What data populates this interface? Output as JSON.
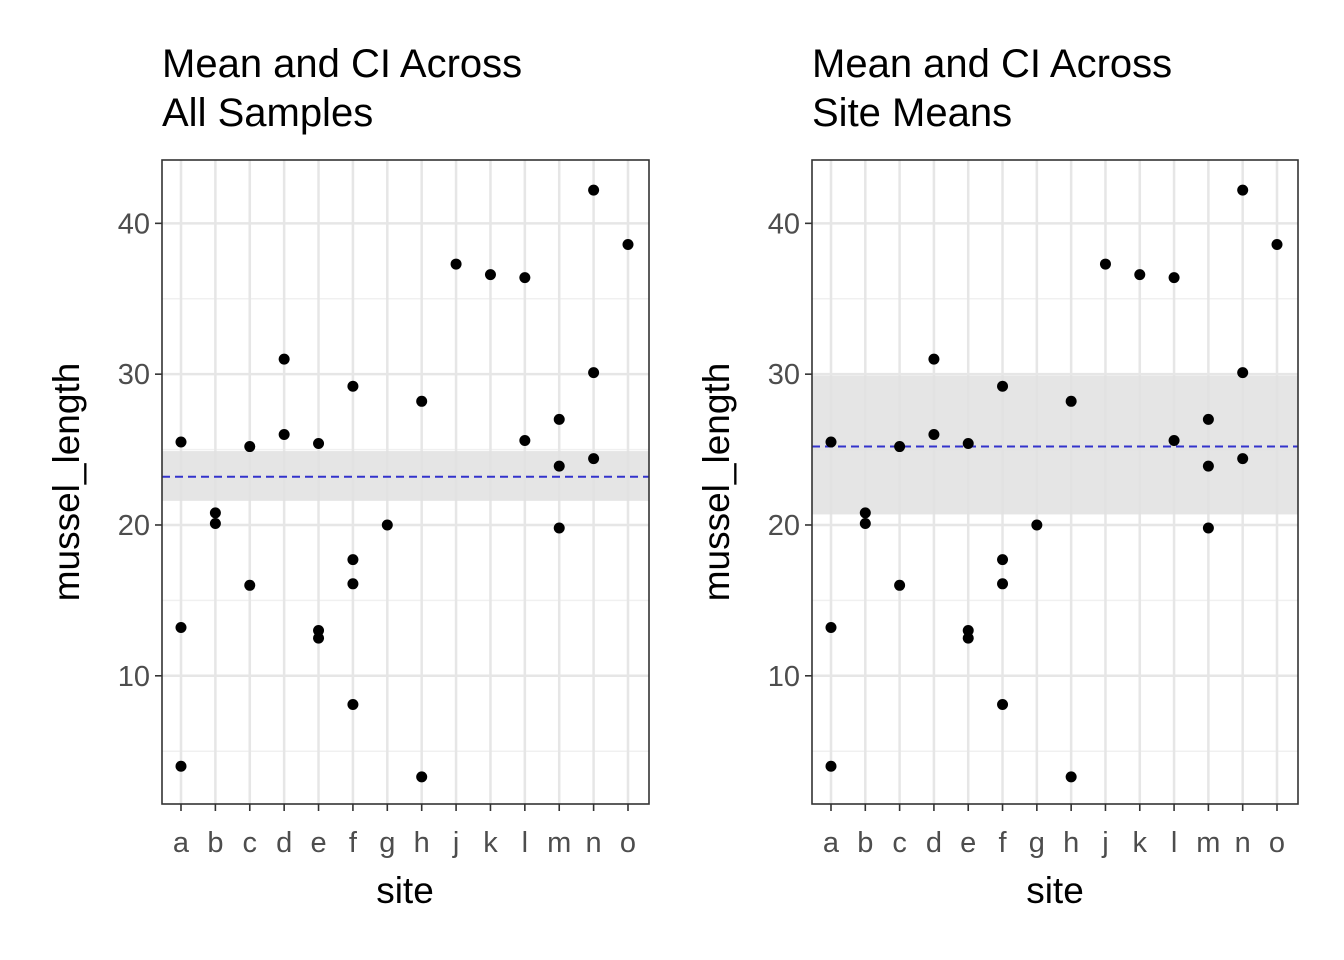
{
  "chart_data": [
    {
      "type": "scatter",
      "title_lines": [
        "Mean and CI Across",
        "All Samples"
      ],
      "xlabel": "site",
      "ylabel": "mussel_length",
      "categories": [
        "a",
        "b",
        "c",
        "d",
        "e",
        "f",
        "g",
        "h",
        "j",
        "k",
        "l",
        "m",
        "n",
        "o"
      ],
      "ylim": [
        1.5,
        44.2
      ],
      "yticks": [
        "10",
        "20",
        "30",
        "40"
      ],
      "grid": true,
      "points": [
        {
          "x": "a",
          "y": 25.5
        },
        {
          "x": "a",
          "y": 13.2
        },
        {
          "x": "a",
          "y": 4.0
        },
        {
          "x": "b",
          "y": 20.8
        },
        {
          "x": "b",
          "y": 20.1
        },
        {
          "x": "c",
          "y": 25.2
        },
        {
          "x": "c",
          "y": 16.0
        },
        {
          "x": "d",
          "y": 31.0
        },
        {
          "x": "d",
          "y": 26.0
        },
        {
          "x": "e",
          "y": 25.4
        },
        {
          "x": "e",
          "y": 13.0
        },
        {
          "x": "e",
          "y": 12.5
        },
        {
          "x": "f",
          "y": 29.2
        },
        {
          "x": "f",
          "y": 17.7
        },
        {
          "x": "f",
          "y": 16.1
        },
        {
          "x": "f",
          "y": 8.1
        },
        {
          "x": "g",
          "y": 20.0
        },
        {
          "x": "h",
          "y": 28.2
        },
        {
          "x": "h",
          "y": 3.3
        },
        {
          "x": "j",
          "y": 37.3
        },
        {
          "x": "k",
          "y": 36.6
        },
        {
          "x": "l",
          "y": 36.4
        },
        {
          "x": "l",
          "y": 25.6
        },
        {
          "x": "m",
          "y": 27.0
        },
        {
          "x": "m",
          "y": 23.9
        },
        {
          "x": "m",
          "y": 19.8
        },
        {
          "x": "n",
          "y": 42.2
        },
        {
          "x": "n",
          "y": 30.1
        },
        {
          "x": "n",
          "y": 24.4
        },
        {
          "x": "o",
          "y": 38.6
        }
      ],
      "mean": 23.2,
      "ci": [
        21.6,
        24.9
      ],
      "mean_line_color": "#3333cc",
      "ci_band_color": "#e0e0e0",
      "point_color": "#000000"
    },
    {
      "type": "scatter",
      "title_lines": [
        "Mean and CI Across",
        "Site Means"
      ],
      "xlabel": "site",
      "ylabel": "mussel_length",
      "categories": [
        "a",
        "b",
        "c",
        "d",
        "e",
        "f",
        "g",
        "h",
        "j",
        "k",
        "l",
        "m",
        "n",
        "o"
      ],
      "ylim": [
        1.5,
        44.2
      ],
      "yticks": [
        "10",
        "20",
        "30",
        "40"
      ],
      "grid": true,
      "points": [
        {
          "x": "a",
          "y": 25.5
        },
        {
          "x": "a",
          "y": 13.2
        },
        {
          "x": "a",
          "y": 4.0
        },
        {
          "x": "b",
          "y": 20.8
        },
        {
          "x": "b",
          "y": 20.1
        },
        {
          "x": "c",
          "y": 25.2
        },
        {
          "x": "c",
          "y": 16.0
        },
        {
          "x": "d",
          "y": 31.0
        },
        {
          "x": "d",
          "y": 26.0
        },
        {
          "x": "e",
          "y": 25.4
        },
        {
          "x": "e",
          "y": 13.0
        },
        {
          "x": "e",
          "y": 12.5
        },
        {
          "x": "f",
          "y": 29.2
        },
        {
          "x": "f",
          "y": 17.7
        },
        {
          "x": "f",
          "y": 16.1
        },
        {
          "x": "f",
          "y": 8.1
        },
        {
          "x": "g",
          "y": 20.0
        },
        {
          "x": "h",
          "y": 28.2
        },
        {
          "x": "h",
          "y": 3.3
        },
        {
          "x": "j",
          "y": 37.3
        },
        {
          "x": "k",
          "y": 36.6
        },
        {
          "x": "l",
          "y": 36.4
        },
        {
          "x": "l",
          "y": 25.6
        },
        {
          "x": "m",
          "y": 27.0
        },
        {
          "x": "m",
          "y": 23.9
        },
        {
          "x": "m",
          "y": 19.8
        },
        {
          "x": "n",
          "y": 42.2
        },
        {
          "x": "n",
          "y": 30.1
        },
        {
          "x": "n",
          "y": 24.4
        },
        {
          "x": "o",
          "y": 38.6
        }
      ],
      "mean": 25.2,
      "ci": [
        20.7,
        29.9
      ],
      "mean_line_color": "#3333cc",
      "ci_band_color": "#e0e0e0",
      "point_color": "#000000"
    }
  ]
}
